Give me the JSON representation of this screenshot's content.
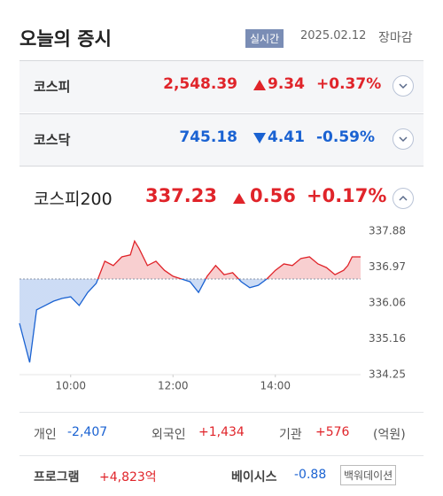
{
  "header": {
    "title": "오늘의 증시",
    "badge": "실시간",
    "date": "2025.02.12",
    "status": "장마감"
  },
  "indices": [
    {
      "name": "코스피",
      "price": "2,548.39",
      "change": "9.34",
      "percent": "+0.37%",
      "direction": "up"
    },
    {
      "name": "코스닥",
      "price": "745.18",
      "change": "4.41",
      "percent": "-0.59%",
      "direction": "down"
    }
  ],
  "featured": {
    "name": "코스피200",
    "price": "337.23",
    "change": "0.56",
    "percent": "+0.17%",
    "direction": "up"
  },
  "chart_data": {
    "type": "line",
    "x": [
      "09:00",
      "09:12",
      "09:20",
      "09:30",
      "09:40",
      "09:50",
      "10:00",
      "10:10",
      "10:20",
      "10:30",
      "10:40",
      "10:50",
      "11:00",
      "11:10",
      "11:15",
      "11:20",
      "11:30",
      "11:40",
      "11:50",
      "12:00",
      "12:10",
      "12:20",
      "12:30",
      "12:40",
      "12:50",
      "13:00",
      "13:10",
      "13:20",
      "13:30",
      "13:40",
      "13:50",
      "14:00",
      "14:10",
      "14:20",
      "14:30",
      "14:40",
      "14:50",
      "15:00",
      "15:10",
      "15:20",
      "15:25",
      "15:30",
      "15:40"
    ],
    "values": [
      335.55,
      334.56,
      335.89,
      336.0,
      336.11,
      336.18,
      336.22,
      336.0,
      336.33,
      336.56,
      337.12,
      337.01,
      337.23,
      337.28,
      337.63,
      337.45,
      337.01,
      337.12,
      336.89,
      336.74,
      336.67,
      336.6,
      336.33,
      336.74,
      337.01,
      336.78,
      336.83,
      336.6,
      336.45,
      336.51,
      336.67,
      336.89,
      337.05,
      337.01,
      337.19,
      337.23,
      337.05,
      336.96,
      336.78,
      336.89,
      337.01,
      337.23,
      337.23
    ],
    "xlim": [
      "09:00",
      "15:40"
    ],
    "xticks": [
      "10:00",
      "12:00",
      "14:00"
    ],
    "ylim": [
      334.25,
      337.88
    ],
    "yticks": [
      337.88,
      336.97,
      336.06,
      335.16,
      334.25
    ],
    "up_color": "#e0242a",
    "down_color": "#1a62d2"
  },
  "investors": {
    "items": [
      {
        "label": "개인",
        "value": "-2,407"
      },
      {
        "label": "외국인",
        "value": "+1,434"
      },
      {
        "label": "기관",
        "value": "+576"
      }
    ],
    "unit": "(억원)"
  },
  "program": {
    "label": "프로그램",
    "value": "+4,823억"
  },
  "basis": {
    "label": "베이시스",
    "value": "-0.88",
    "state": "백워데이션"
  }
}
